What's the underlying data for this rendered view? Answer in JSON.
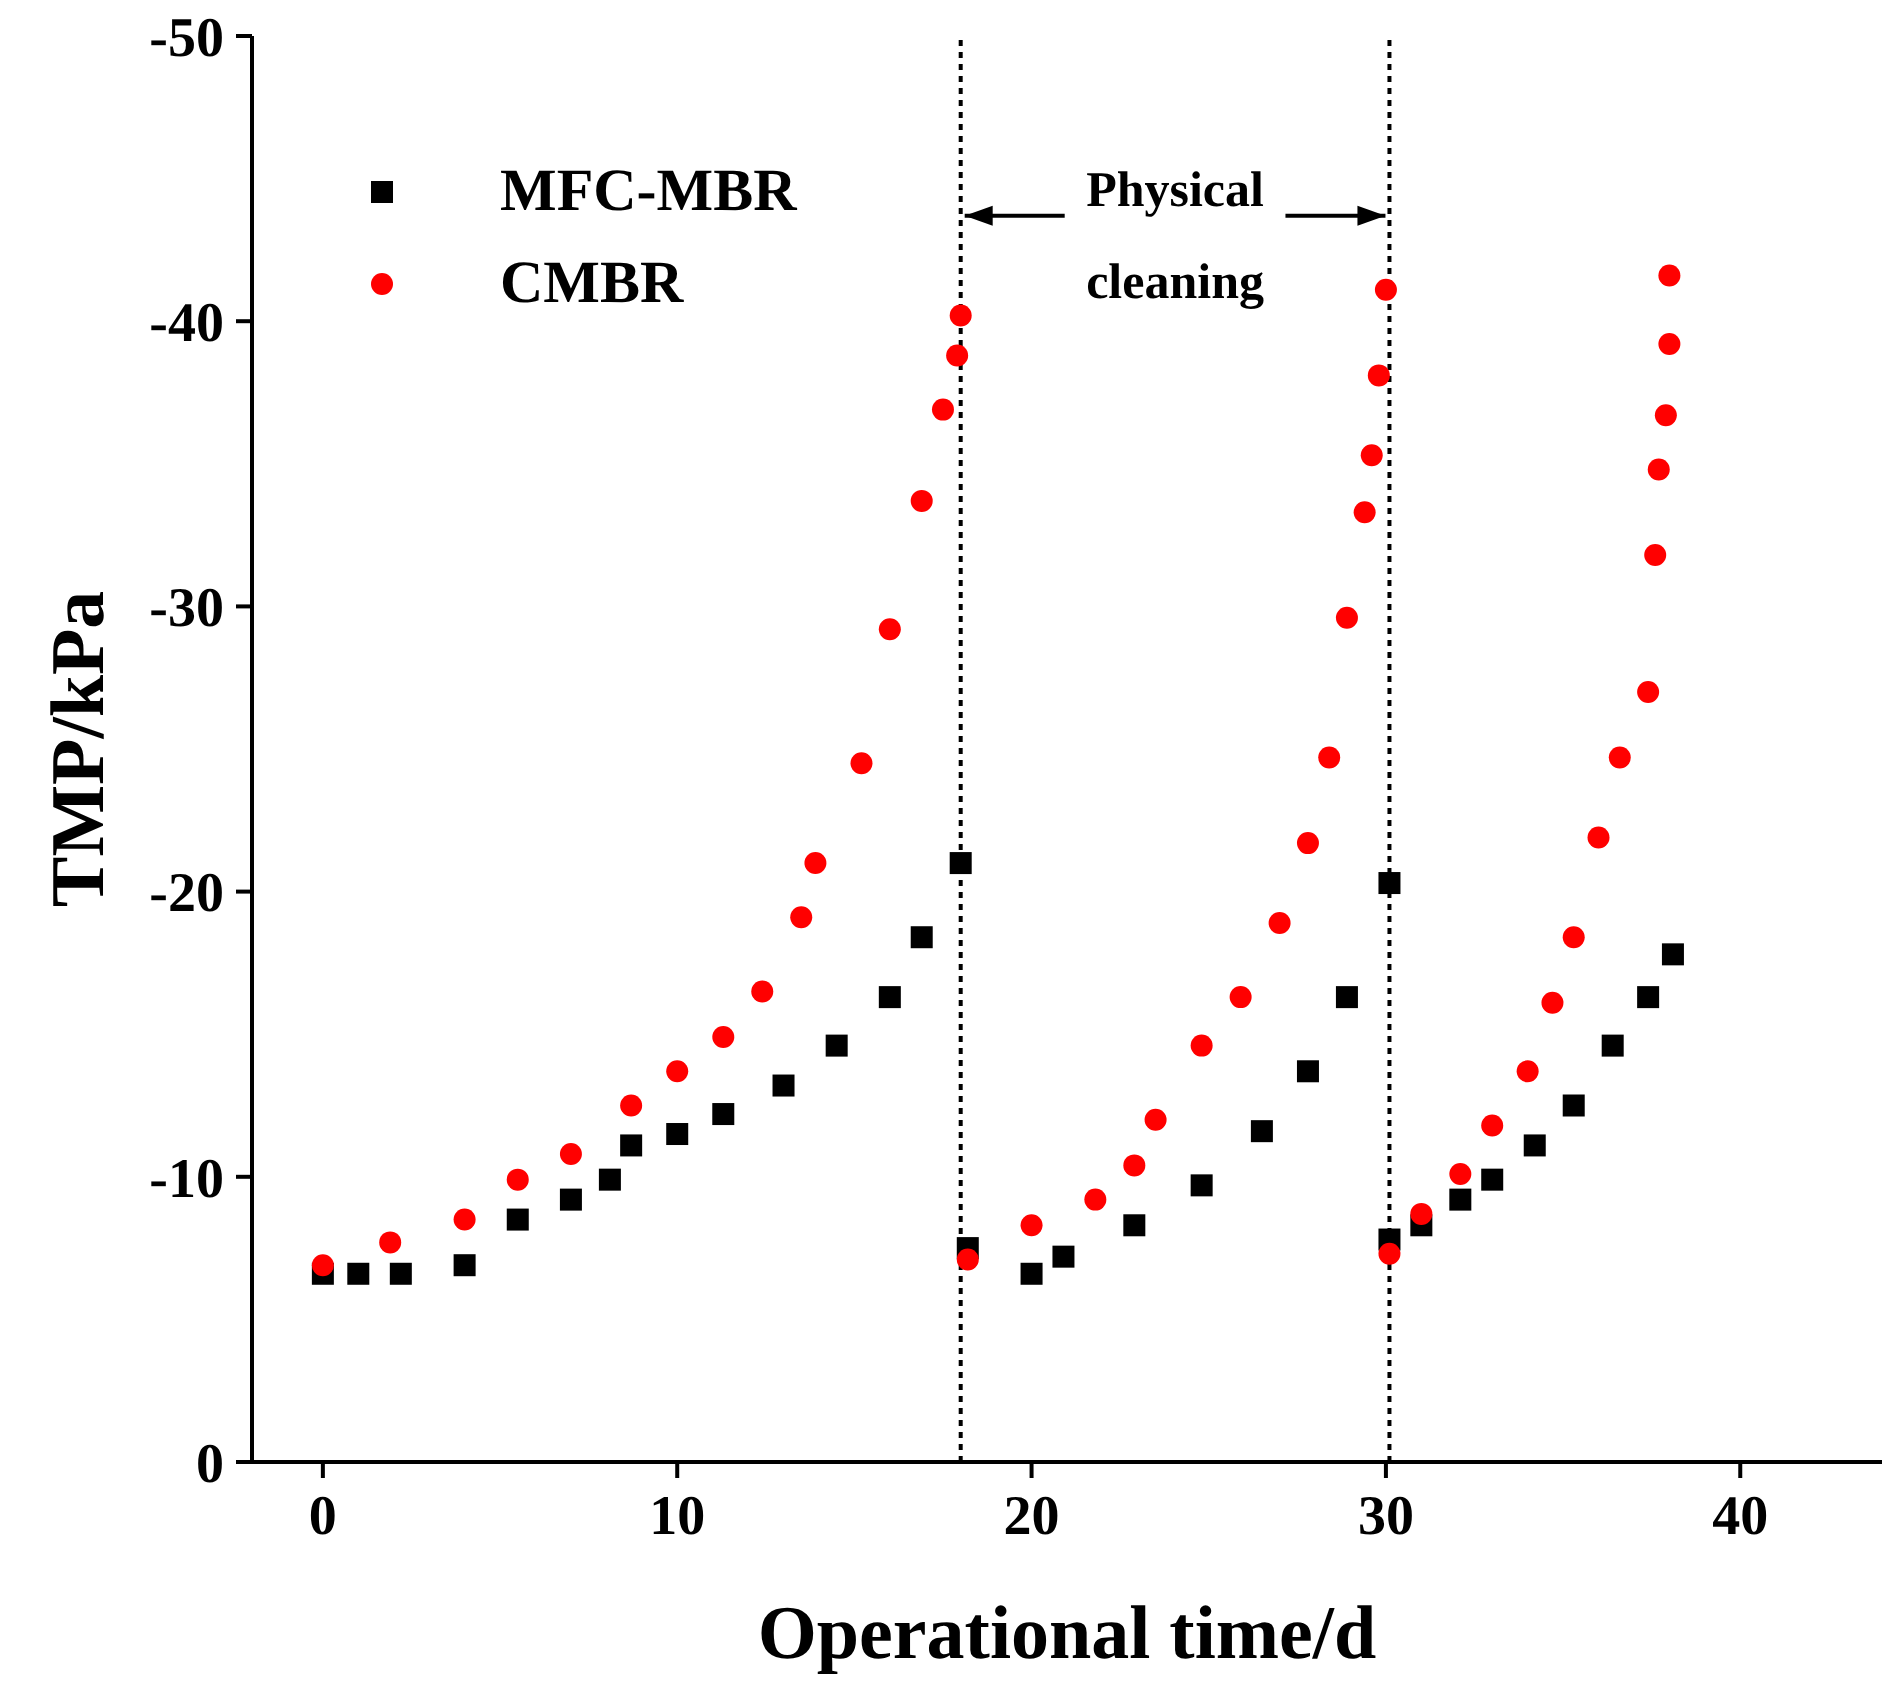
{
  "chart_data": {
    "type": "scatter",
    "xlabel": "Operational time/d",
    "ylabel": "TMP/kPa",
    "xlim": [
      -2,
      44
    ],
    "xticks": [
      0,
      10,
      20,
      30,
      40
    ],
    "ylim": [
      0,
      -50
    ],
    "yticks": [
      0,
      -10,
      -20,
      -30,
      -40,
      -50
    ],
    "grid": false,
    "legend": "top left",
    "annotations": [
      {
        "text": "Physical cleaning",
        "x": 30.1,
        "y": -43.7
      }
    ],
    "ref_lines": [
      {
        "axis": "x",
        "value": 18,
        "label": null,
        "color": "#000000",
        "line_style": "dotted"
      },
      {
        "axis": "x",
        "value": 30.1,
        "label": null,
        "color": "#000000",
        "line_style": "dotted"
      }
    ],
    "series": [
      {
        "name": "MFC-MBR",
        "color": "#000000",
        "marker": "square",
        "x": [
          0,
          1,
          2.2,
          4,
          5.5,
          7,
          8.1,
          8.7,
          10,
          11.3,
          13,
          14.5,
          16,
          16.9,
          18,
          18.2,
          20,
          20.9,
          22.9,
          24.8,
          26.5,
          27.8,
          28.9,
          30.1,
          30.1,
          31,
          32.1,
          33,
          34.2,
          35.3,
          36.4,
          37.4,
          38.1
        ],
        "values": [
          -6.6,
          -6.6,
          -6.6,
          -6.9,
          -8.5,
          -9.2,
          -9.9,
          -11.1,
          -11.5,
          -12.2,
          -13.2,
          -14.6,
          -16.3,
          -18.4,
          -21,
          -7.5,
          -6.6,
          -7.2,
          -8.3,
          -9.7,
          -11.6,
          -13.7,
          -16.3,
          -20.3,
          -7.8,
          -8.3,
          -9.2,
          -9.9,
          -11.1,
          -12.5,
          -14.6,
          -16.3,
          -17.8
        ]
      },
      {
        "name": "CMBR",
        "color": "#ff0000",
        "marker": "circle",
        "x": [
          0,
          1.9,
          4,
          5.5,
          7,
          8.7,
          10,
          11.3,
          12.4,
          13.5,
          13.9,
          15.2,
          16,
          16.9,
          17.5,
          17.9,
          18,
          18.2,
          20,
          21.8,
          22.9,
          23.5,
          24.8,
          25.9,
          27,
          27.8,
          28.4,
          28.9,
          29.4,
          29.6,
          29.8,
          30,
          30.1,
          31,
          32.1,
          33,
          34,
          34.7,
          35.3,
          36,
          36.6,
          37.4,
          37.6,
          37.7,
          37.9,
          38,
          38
        ],
        "values": [
          -6.9,
          -7.7,
          -8.5,
          -9.9,
          -10.8,
          -12.5,
          -13.7,
          -14.9,
          -16.5,
          -19.1,
          -21,
          -24.5,
          -29.2,
          -33.7,
          -36.9,
          -38.8,
          -40.2,
          -7.1,
          -8.3,
          -9.2,
          -10.4,
          -12,
          -14.6,
          -16.3,
          -18.9,
          -21.7,
          -24.7,
          -29.6,
          -33.3,
          -35.3,
          -38.1,
          -41.1,
          -7.3,
          -8.7,
          -10.1,
          -11.8,
          -13.7,
          -16.1,
          -18.4,
          -21.9,
          -24.7,
          -27,
          -31.8,
          -34.8,
          -36.7,
          -39.2,
          -41.6
        ]
      }
    ]
  }
}
